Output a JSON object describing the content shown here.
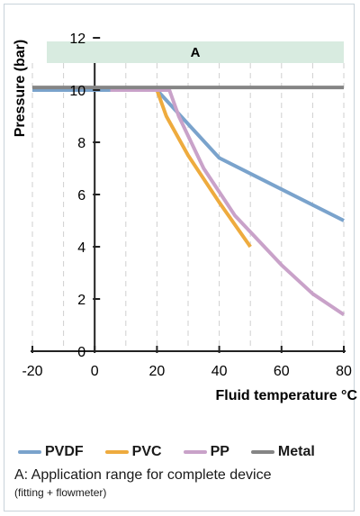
{
  "chart_data": {
    "type": "line",
    "xlabel": "Fluid temperature °C",
    "ylabel": "Pressure (bar)",
    "xlim": [
      -20,
      80
    ],
    "ylim": [
      0,
      12
    ],
    "xticks": [
      -20,
      0,
      20,
      40,
      60,
      80
    ],
    "yticks": [
      0,
      2,
      4,
      6,
      8,
      10,
      12
    ],
    "grid": "dashed vertical at x ticks and midpoints",
    "band": {
      "label": "A",
      "x_range": [
        -20,
        80
      ],
      "color": "#d8ebe0"
    },
    "legend_position": "bottom",
    "series": [
      {
        "name": "PVDF",
        "color": "#7aa3cc",
        "points": [
          [
            -20,
            10
          ],
          [
            20,
            10
          ],
          [
            40,
            7.4
          ],
          [
            60,
            6.2
          ],
          [
            80,
            5.0
          ]
        ]
      },
      {
        "name": "PVC",
        "color": "#eeab3e",
        "points": [
          [
            5,
            10
          ],
          [
            20,
            10
          ],
          [
            23,
            9.0
          ],
          [
            30,
            7.5
          ],
          [
            40,
            5.7
          ],
          [
            50,
            4.0
          ]
        ]
      },
      {
        "name": "PP",
        "color": "#c9a2c9",
        "points": [
          [
            5,
            10
          ],
          [
            24,
            10
          ],
          [
            27,
            9.0
          ],
          [
            35,
            7.0
          ],
          [
            45,
            5.2
          ],
          [
            60,
            3.3
          ],
          [
            70,
            2.2
          ],
          [
            80,
            1.4
          ]
        ]
      },
      {
        "name": "Metal",
        "color": "#858585",
        "points": [
          [
            -20,
            10.1
          ],
          [
            80,
            10.1
          ]
        ]
      }
    ]
  },
  "note": {
    "main": "A: Application range for complete device",
    "sub": "(fitting + flowmeter)"
  }
}
